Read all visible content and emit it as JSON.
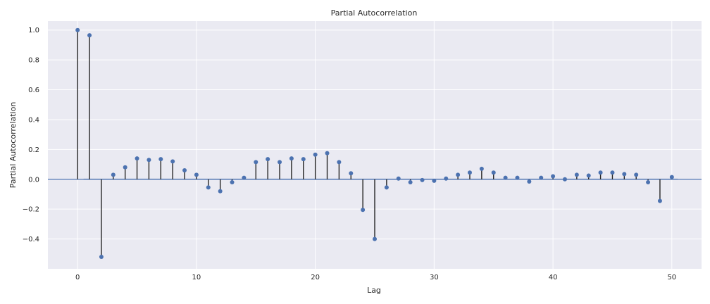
{
  "chart_data": {
    "type": "stem",
    "title": "Partial Autocorrelation",
    "xlabel": "Lag",
    "ylabel": "Partial Autocorrelation",
    "xlim": [
      -2.5,
      52.5
    ],
    "ylim": [
      -0.6,
      1.06
    ],
    "xticks": [
      0,
      10,
      20,
      30,
      40,
      50
    ],
    "xtick_labels": [
      "0",
      "10",
      "20",
      "30",
      "40",
      "50"
    ],
    "yticks": [
      -0.4,
      -0.2,
      0.0,
      0.2,
      0.4,
      0.6,
      0.8,
      1.0
    ],
    "ytick_labels": [
      "−0.4",
      "−0.2",
      "0.0",
      "0.2",
      "0.4",
      "0.6",
      "0.8",
      "1.0"
    ],
    "grid": true,
    "colors": {
      "background": "#eaeaf2",
      "grid": "#ffffff",
      "marker": "#4c72b0",
      "stem": "#262626",
      "zero_line": "#4c72b0",
      "band": "#4c72b0"
    },
    "confidence_band": [
      -0.005,
      0.005
    ],
    "x": [
      0,
      1,
      2,
      3,
      4,
      5,
      6,
      7,
      8,
      9,
      10,
      11,
      12,
      13,
      14,
      15,
      16,
      17,
      18,
      19,
      20,
      21,
      22,
      23,
      24,
      25,
      26,
      27,
      28,
      29,
      30,
      31,
      32,
      33,
      34,
      35,
      36,
      37,
      38,
      39,
      40,
      41,
      42,
      43,
      44,
      45,
      46,
      47,
      48,
      49,
      50
    ],
    "values": [
      1.0,
      0.965,
      -0.52,
      0.03,
      0.08,
      0.14,
      0.13,
      0.135,
      0.12,
      0.06,
      0.03,
      -0.055,
      -0.08,
      -0.02,
      0.01,
      0.115,
      0.135,
      0.115,
      0.14,
      0.135,
      0.165,
      0.175,
      0.115,
      0.04,
      -0.205,
      -0.4,
      -0.055,
      0.005,
      -0.02,
      -0.005,
      -0.01,
      0.005,
      0.03,
      0.045,
      0.07,
      0.045,
      0.01,
      0.01,
      -0.015,
      0.01,
      0.02,
      0.0,
      0.03,
      0.025,
      0.045,
      0.045,
      0.035,
      0.03,
      -0.02,
      -0.145,
      0.015
    ]
  }
}
